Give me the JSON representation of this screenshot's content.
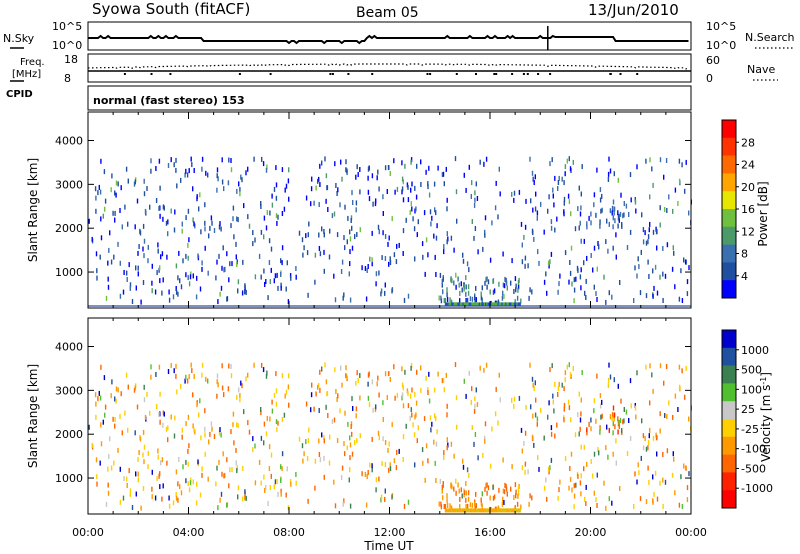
{
  "header": {
    "title": "Syowa South (fitACF)",
    "beam": "Beam 05",
    "date": "13/Jun/2010"
  },
  "panels": {
    "noise": {
      "left_label": "N.Sky",
      "right_label": "N.Search",
      "left_ticks": [
        "10^5",
        "10^0"
      ],
      "right_ticks": [
        "10^5",
        "10^0"
      ]
    },
    "freq": {
      "left_label": "Freq.",
      "left_unit": "[MHz]",
      "right_label": "Nave",
      "left_ticks": [
        "18",
        "8"
      ],
      "right_ticks": [
        "60",
        "0"
      ],
      "cpid_label": "CPID"
    },
    "cpid_text": "normal (fast stereo) 153"
  },
  "colors": {
    "noise_line": "#000000",
    "power_scale": [
      "#0000ff",
      "#1f4fa0",
      "#3a6fb0",
      "#4c9a6a",
      "#70c040",
      "#e6e600",
      "#ffa500",
      "#ff6a00",
      "#ff3300",
      "#ff0000"
    ],
    "velocity_scale": [
      "#0000cc",
      "#2050a0",
      "#3a8050",
      "#50c030",
      "#c8c8c8",
      "#ffd000",
      "#ff9900",
      "#ff6600",
      "#ff2200",
      "#ff0000"
    ]
  },
  "chart_data": [
    {
      "type": "heatmap",
      "name": "Power",
      "ylabel": "Slant Range [km]",
      "xlabel": "",
      "xlim_hours": [
        0,
        24
      ],
      "ylim": [
        180,
        4650
      ],
      "yticks": [
        1000,
        2000,
        3000,
        4000
      ],
      "colorbar_label": "Power [dB]",
      "colorbar_ticks": [
        "4",
        "8",
        "12",
        "16",
        "20",
        "24",
        "28"
      ],
      "colorbar_range": [
        0,
        30
      ]
    },
    {
      "type": "heatmap",
      "name": "Velocity",
      "ylabel": "Slant Range [km]",
      "xlabel": "Time UT",
      "xlim_hours": [
        0,
        24
      ],
      "ylim": [
        180,
        4650
      ],
      "yticks": [
        1000,
        2000,
        3000,
        4000
      ],
      "xticks": [
        "00:00",
        "04:00",
        "08:00",
        "12:00",
        "16:00",
        "20:00",
        "00:00"
      ],
      "colorbar_label": "Velocity [m s",
      "colorbar_unit_sup": "-1",
      "colorbar_unit_end": "]",
      "colorbar_ticks": [
        "1000",
        "500",
        "100",
        "25",
        "-25",
        "-100",
        "-500",
        "-1000"
      ]
    }
  ]
}
